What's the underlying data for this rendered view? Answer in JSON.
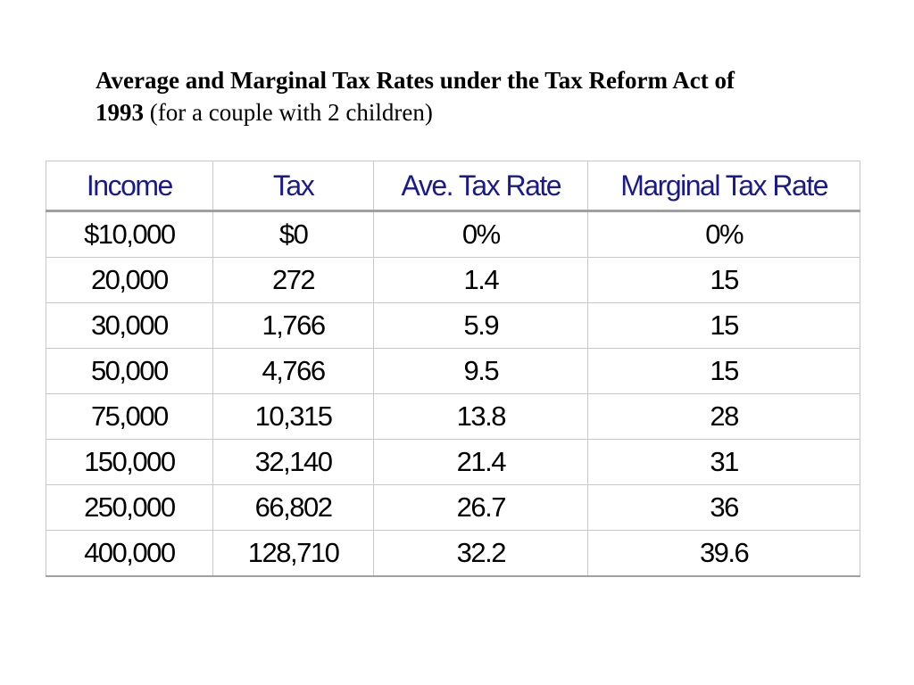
{
  "title": {
    "bold": "Average and Marginal Tax Rates under the Tax Reform Act of 1993",
    "normal": "(for a couple with 2 children)"
  },
  "table": {
    "headers": [
      "Income",
      "Tax",
      "Ave. Tax Rate",
      "Marginal Tax Rate"
    ],
    "rows": [
      [
        "$10,000",
        "$0",
        "0%",
        "0%"
      ],
      [
        "20,000",
        "272",
        "1.4",
        "15"
      ],
      [
        "30,000",
        "1,766",
        "5.9",
        "15"
      ],
      [
        "50,000",
        "4,766",
        "9.5",
        "15"
      ],
      [
        "75,000",
        "10,315",
        "13.8",
        "28"
      ],
      [
        "150,000",
        "32,140",
        "21.4",
        "31"
      ],
      [
        "250,000",
        "66,802",
        "26.7",
        "36"
      ],
      [
        "400,000",
        "128,710",
        "32.2",
        "39.6"
      ]
    ]
  },
  "colors": {
    "header_text": "#1a1a8c",
    "body_text": "#000000",
    "grid": "#c8c8c8"
  }
}
